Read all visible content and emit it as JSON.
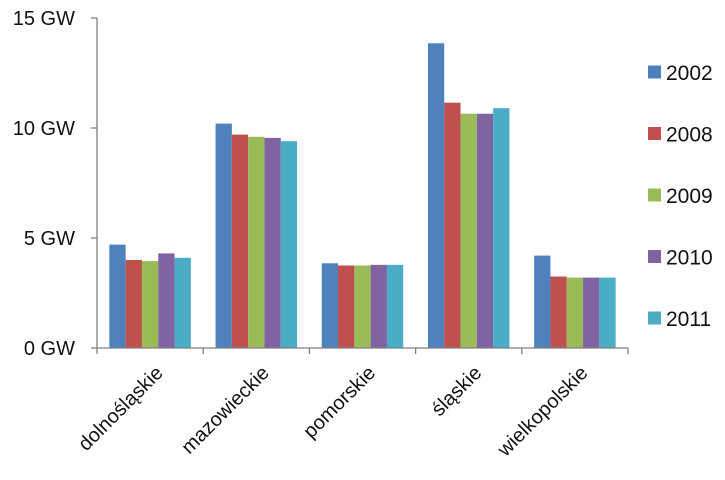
{
  "chart_data": {
    "type": "bar",
    "title": "",
    "xlabel": "",
    "ylabel": "",
    "ylim": [
      0,
      15
    ],
    "y_ticks": [
      {
        "value": 0,
        "label": "0 GW"
      },
      {
        "value": 5,
        "label": "5 GW"
      },
      {
        "value": 10,
        "label": "10 GW"
      },
      {
        "value": 15,
        "label": "15 GW"
      }
    ],
    "grid": false,
    "legend_position": "right",
    "categories": [
      "dolnośląskie",
      "mazowieckie",
      "pomorskie",
      "śląskie",
      "wielkopolskie"
    ],
    "series": [
      {
        "name": "2002",
        "color": "#4F81BD",
        "values": [
          4.7,
          10.2,
          3.85,
          13.85,
          4.2
        ]
      },
      {
        "name": "2008",
        "color": "#C0504D",
        "values": [
          4.0,
          9.7,
          3.75,
          11.15,
          3.25
        ]
      },
      {
        "name": "2009",
        "color": "#9BBB59",
        "values": [
          3.95,
          9.6,
          3.75,
          10.65,
          3.2
        ]
      },
      {
        "name": "2010",
        "color": "#8064A2",
        "values": [
          4.3,
          9.55,
          3.78,
          10.65,
          3.2
        ]
      },
      {
        "name": "2011",
        "color": "#4BACC6",
        "values": [
          4.1,
          9.4,
          3.78,
          10.9,
          3.2
        ]
      }
    ]
  }
}
